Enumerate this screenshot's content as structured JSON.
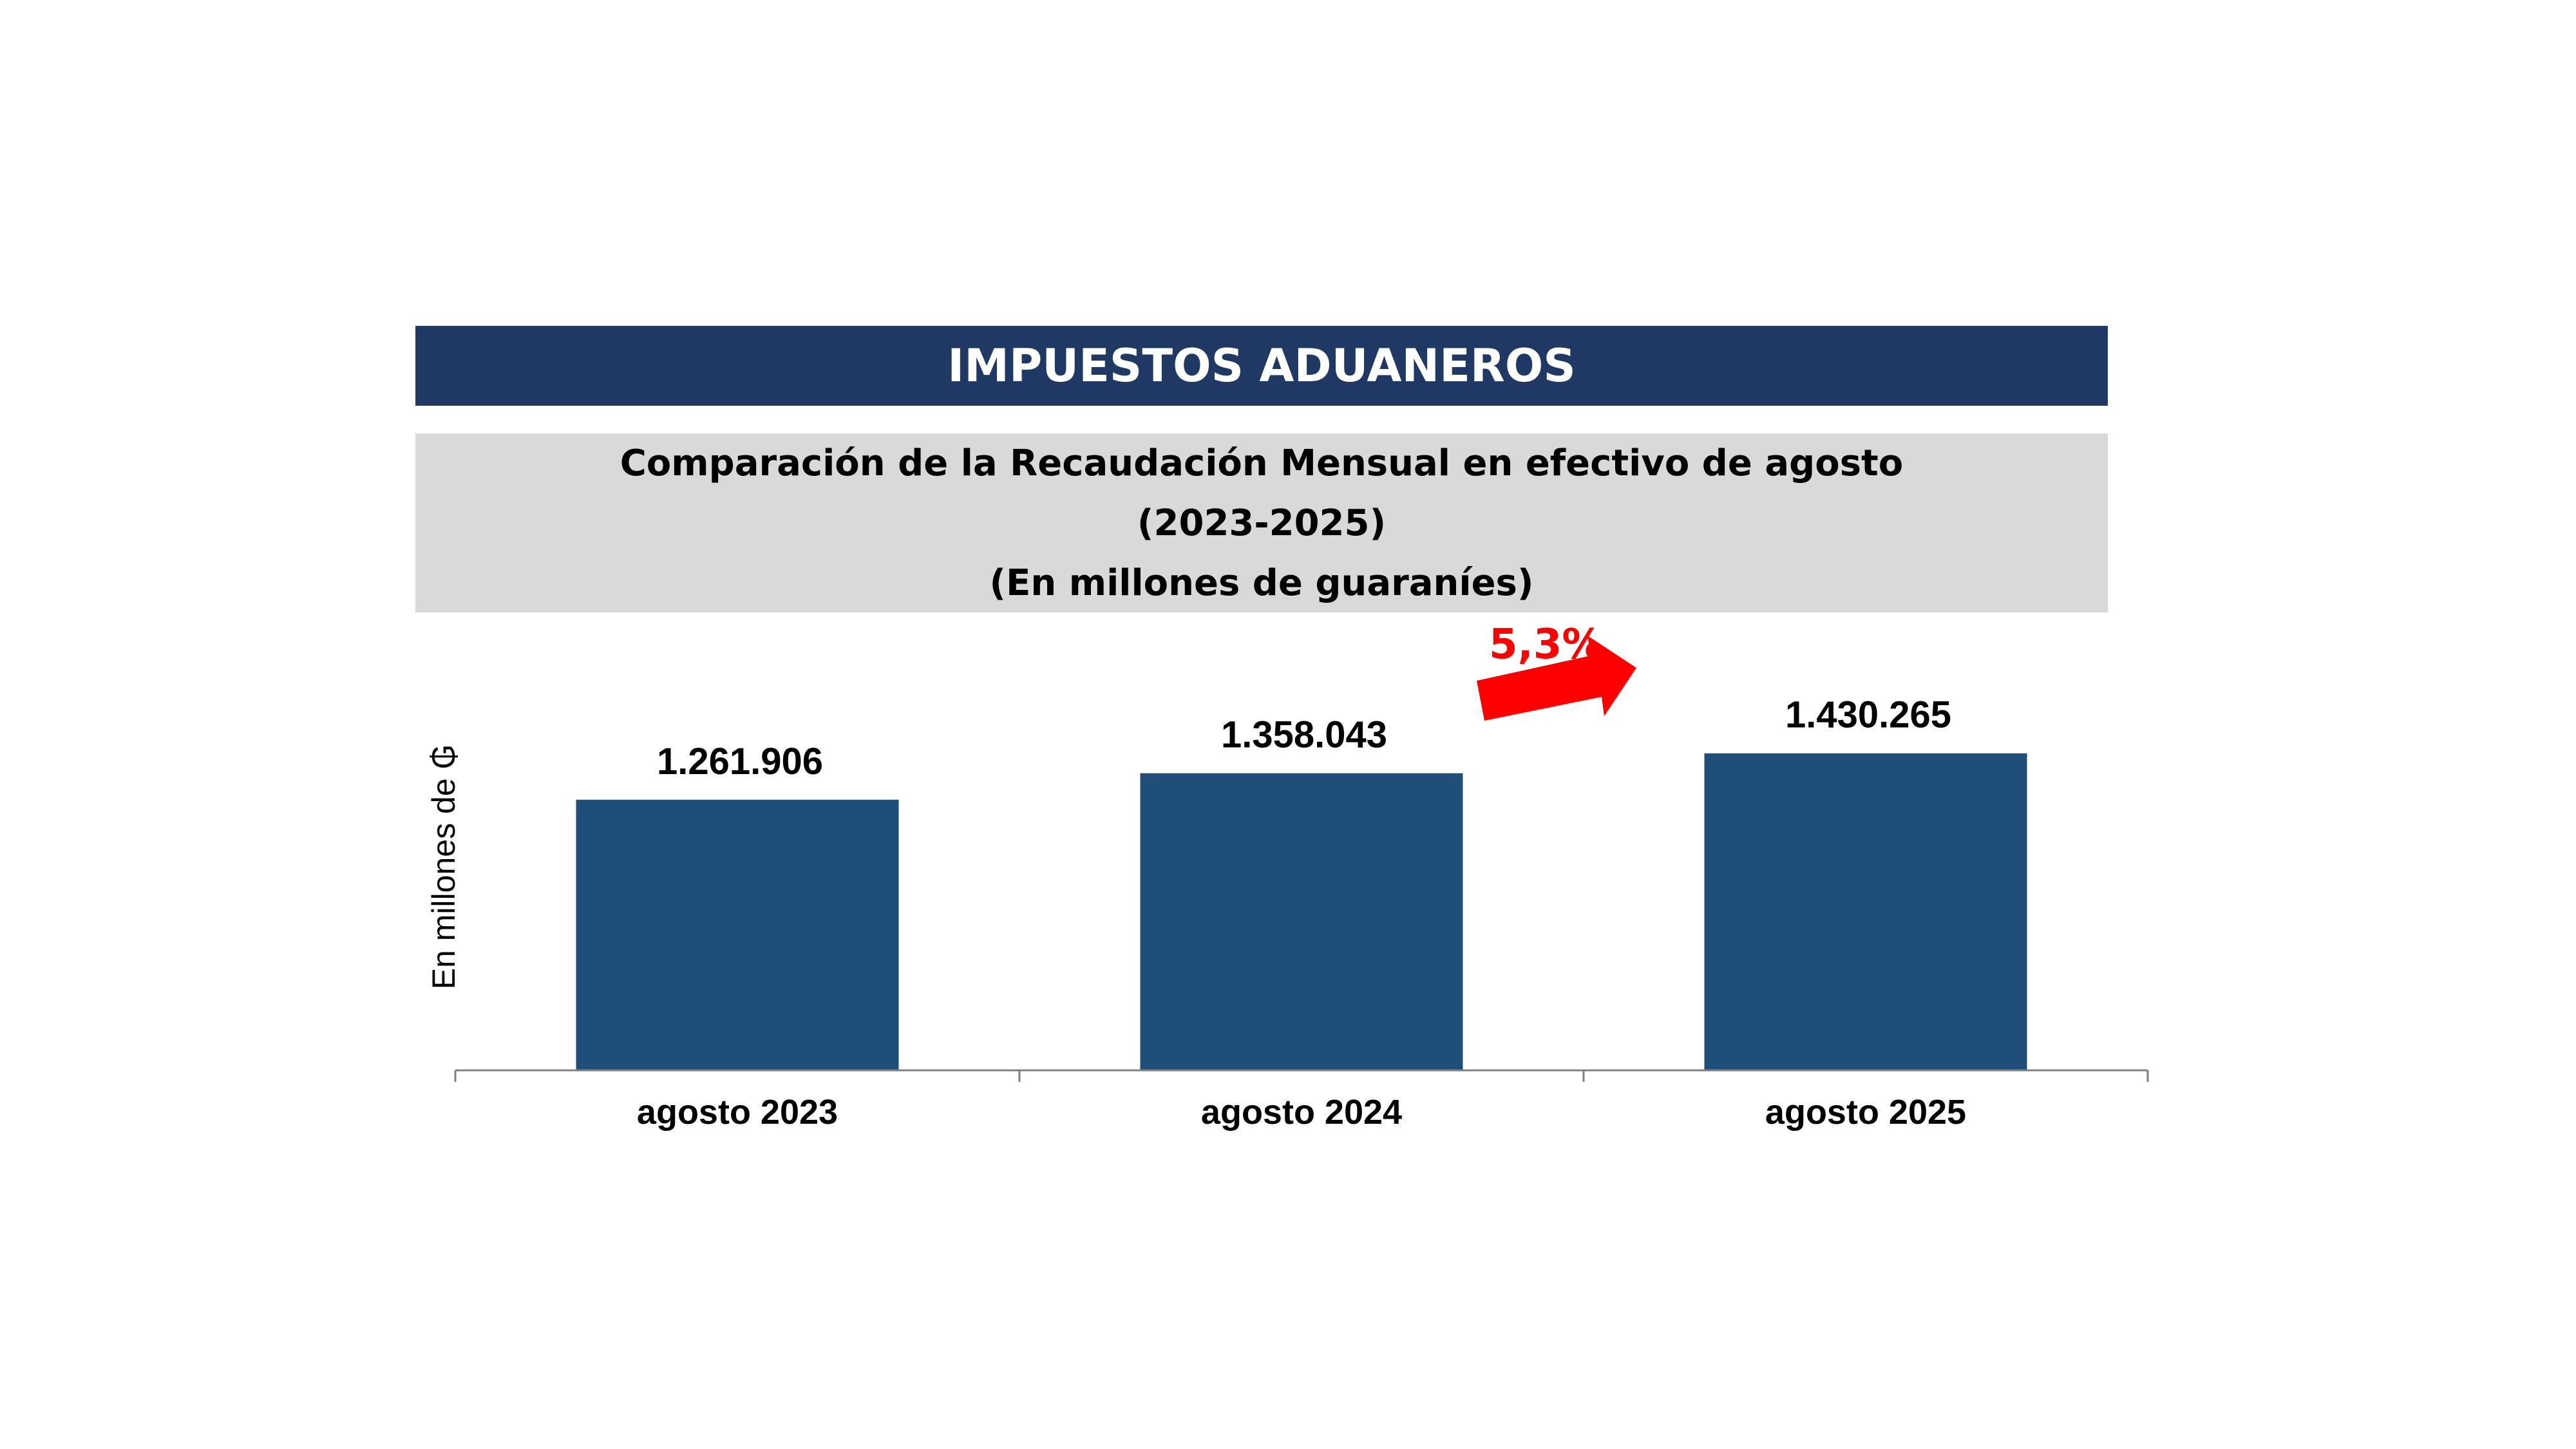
{
  "header": {
    "title": "IMPUESTOS ADUANEROS"
  },
  "subtitle": {
    "line1": "Comparación de la Recaudación Mensual en efectivo de agosto",
    "line2": "(2023-2025)",
    "line3": "(En millones de guaraníes)"
  },
  "chart_data": {
    "type": "bar",
    "title": "Comparación de la Recaudación Mensual en efectivo de agosto (2023-2025)",
    "subtitle": "(En millones de guaraníes)",
    "categories": [
      "agosto 2023",
      "agosto 2024",
      "agosto 2025"
    ],
    "values": [
      1261906,
      1358043,
      1430265
    ],
    "value_labels": [
      "1.261.906",
      "1.358.043",
      "1.430.265"
    ],
    "xlabel": "",
    "ylabel": "En millones de ₲",
    "ylim": [
      282000,
      2000000
    ],
    "grid": false,
    "bar_color": "#1f4e79",
    "annotation": {
      "text": "5,3%",
      "color": "#ff0000",
      "icon": "arrow-up-right-icon"
    }
  }
}
